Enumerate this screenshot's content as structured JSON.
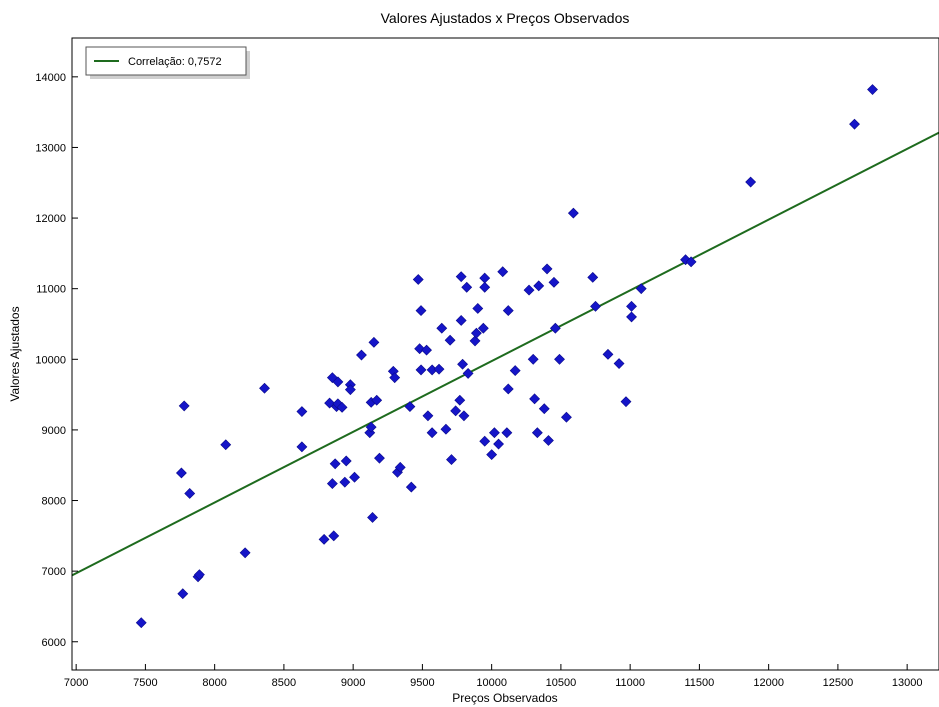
{
  "chart_data": {
    "type": "scatter",
    "title": "Valores Ajustados x Preços Observados",
    "xlabel": "Preços Observados",
    "ylabel": "Valores Ajustados",
    "xlim": [
      6970,
      13230
    ],
    "ylim": [
      5600,
      14550
    ],
    "xticks": [
      7000,
      7500,
      8000,
      8500,
      9000,
      9500,
      10000,
      10500,
      11000,
      11500,
      12000,
      12500,
      13000
    ],
    "yticks": [
      6000,
      7000,
      8000,
      9000,
      10000,
      11000,
      12000,
      13000,
      14000
    ],
    "grid": false,
    "legend": {
      "position": "top-left",
      "entries": [
        "Correlação: 0,7572"
      ]
    },
    "series": [
      {
        "kind": "scatter",
        "color": "#1515c8",
        "marker": "diamond",
        "points": [
          [
            7470,
            6270
          ],
          [
            7770,
            6680
          ],
          [
            7880,
            6920
          ],
          [
            7890,
            6950
          ],
          [
            7760,
            8390
          ],
          [
            7780,
            9340
          ],
          [
            7820,
            8100
          ],
          [
            8080,
            8790
          ],
          [
            8220,
            7260
          ],
          [
            8360,
            9590
          ],
          [
            8630,
            8760
          ],
          [
            8630,
            9260
          ],
          [
            8790,
            7450
          ],
          [
            8830,
            9380
          ],
          [
            8850,
            9740
          ],
          [
            8850,
            8240
          ],
          [
            8860,
            7500
          ],
          [
            8870,
            8520
          ],
          [
            8880,
            9330
          ],
          [
            8890,
            9370
          ],
          [
            8890,
            9680
          ],
          [
            8920,
            9320
          ],
          [
            8940,
            8260
          ],
          [
            8950,
            8560
          ],
          [
            8980,
            9640
          ],
          [
            8980,
            9570
          ],
          [
            9010,
            8330
          ],
          [
            9060,
            10060
          ],
          [
            9120,
            8960
          ],
          [
            9130,
            9040
          ],
          [
            9130,
            9390
          ],
          [
            9140,
            7760
          ],
          [
            9150,
            10240
          ],
          [
            9170,
            9420
          ],
          [
            9190,
            8600
          ],
          [
            9290,
            9830
          ],
          [
            9300,
            9740
          ],
          [
            9320,
            8400
          ],
          [
            9340,
            8470
          ],
          [
            9410,
            9330
          ],
          [
            9420,
            8190
          ],
          [
            9470,
            11130
          ],
          [
            9480,
            10150
          ],
          [
            9490,
            9850
          ],
          [
            9490,
            10690
          ],
          [
            9530,
            10130
          ],
          [
            9540,
            9200
          ],
          [
            9570,
            8960
          ],
          [
            9570,
            9850
          ],
          [
            9620,
            9860
          ],
          [
            9640,
            10440
          ],
          [
            9670,
            9010
          ],
          [
            9700,
            10270
          ],
          [
            9710,
            8580
          ],
          [
            9740,
            9270
          ],
          [
            9770,
            9420
          ],
          [
            9780,
            11170
          ],
          [
            9780,
            10550
          ],
          [
            9790,
            9930
          ],
          [
            9800,
            9200
          ],
          [
            9820,
            11020
          ],
          [
            9830,
            9800
          ],
          [
            9880,
            10260
          ],
          [
            9890,
            10370
          ],
          [
            9900,
            10720
          ],
          [
            9940,
            10440
          ],
          [
            9950,
            11150
          ],
          [
            9950,
            11020
          ],
          [
            9950,
            8840
          ],
          [
            10000,
            8650
          ],
          [
            10020,
            8960
          ],
          [
            10050,
            8800
          ],
          [
            10080,
            11240
          ],
          [
            10110,
            8960
          ],
          [
            10120,
            10690
          ],
          [
            10120,
            9580
          ],
          [
            10170,
            9840
          ],
          [
            10270,
            10980
          ],
          [
            10300,
            10000
          ],
          [
            10310,
            9440
          ],
          [
            10330,
            8960
          ],
          [
            10340,
            11040
          ],
          [
            10380,
            9300
          ],
          [
            10400,
            11280
          ],
          [
            10410,
            8850
          ],
          [
            10450,
            11090
          ],
          [
            10460,
            10440
          ],
          [
            10490,
            10000
          ],
          [
            10540,
            9180
          ],
          [
            10590,
            12070
          ],
          [
            10730,
            11160
          ],
          [
            10750,
            10750
          ],
          [
            10840,
            10070
          ],
          [
            10920,
            9940
          ],
          [
            10970,
            9400
          ],
          [
            11010,
            10750
          ],
          [
            11010,
            10600
          ],
          [
            11080,
            11000
          ],
          [
            11400,
            11410
          ],
          [
            11440,
            11380
          ],
          [
            11870,
            12510
          ],
          [
            12620,
            13330
          ],
          [
            12750,
            13820
          ]
        ]
      },
      {
        "kind": "line",
        "name": "Correlação: 0,7572",
        "color": "#1e6b1e",
        "points": [
          [
            6970,
            6940
          ],
          [
            13230,
            13210
          ]
        ]
      }
    ]
  }
}
